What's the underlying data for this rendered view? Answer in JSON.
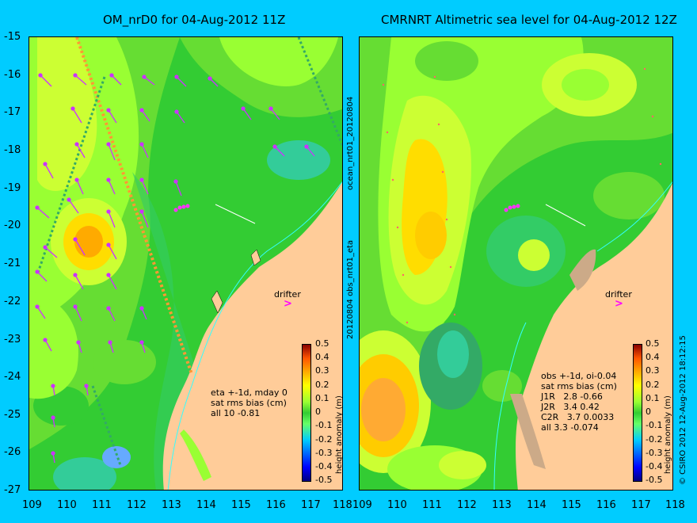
{
  "left": {
    "title": "OM_nrD0 for 04-Aug-2012 11Z",
    "annotation": "eta +-1d, mday 0\nsat rms bias (cm)\nall 10 -0.81",
    "side_label_top": "ocean_nrt01_20120804",
    "side_label_bottom": "20120804 obs_nrt01_eta"
  },
  "right": {
    "title": "CMRNRT Altimetric sea level  for 04-Aug-2012 12Z",
    "annotation": "obs +-1d, oi-0.04\nsat rms bias (cm)\nJ1R   2.8 -0.66\nJ2R   3.4 0.42\nC2R   3.7 0.0033\nall 3.3 -0.074",
    "copyright": "© CSIRO 2012  12-Aug-2012 18:12:15"
  },
  "drifter_label": "drifter",
  "drifter_symbol": ">",
  "y_ticks": [
    "-15",
    "-16",
    "-17",
    "-18",
    "-19",
    "-20",
    "-21",
    "-22",
    "-23",
    "-24",
    "-25",
    "-26",
    "-27"
  ],
  "x_ticks": [
    "109",
    "110",
    "111",
    "112",
    "113",
    "114",
    "115",
    "116",
    "117",
    "118"
  ],
  "colorbar": {
    "label": "height anomaly (m)",
    "ticks": [
      "0.5",
      "0.4",
      "0.3",
      "0.2",
      "0.1",
      "0",
      "-0.1",
      "-0.2",
      "-0.3",
      "-0.4",
      "-0.5"
    ]
  },
  "colors": {
    "background": "#00ccff",
    "land": "#ffcc99",
    "field_low": "#33cc33",
    "field_mid": "#99ff33",
    "field_high": "#ffcc00",
    "vector": "#cc33ff",
    "drifter": "#ff00ff",
    "coast_line": "#33ffff"
  }
}
